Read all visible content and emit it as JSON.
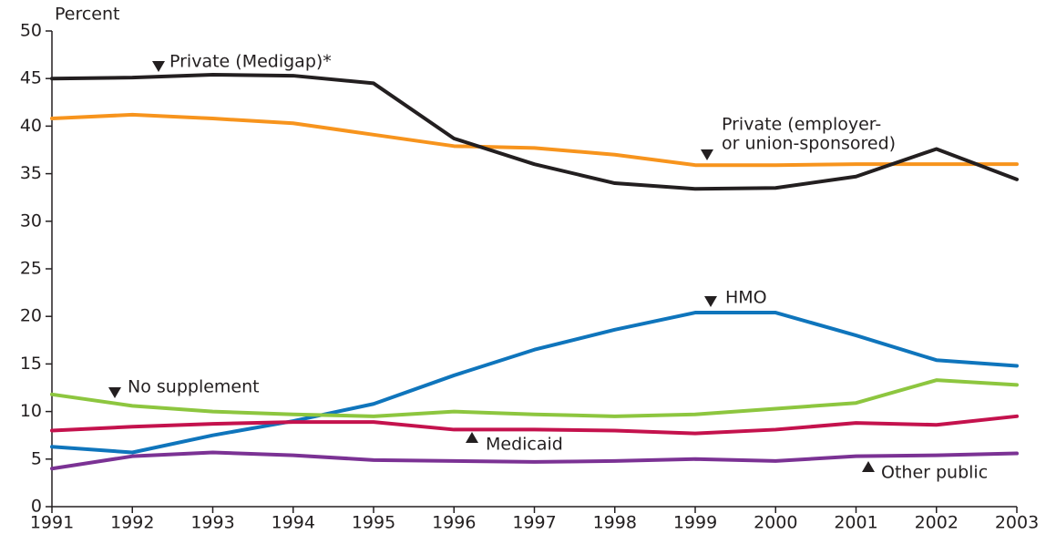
{
  "chart_data": {
    "type": "line",
    "y_label": "Percent",
    "categories": [
      "1991",
      "1992",
      "1993",
      "1994",
      "1995",
      "1996",
      "1997",
      "1998",
      "1999",
      "2000",
      "2001",
      "2002",
      "2003"
    ],
    "ylim": [
      0,
      50
    ],
    "yticks": [
      0,
      5,
      10,
      15,
      20,
      25,
      30,
      35,
      40,
      45,
      50
    ],
    "series": [
      {
        "color": "#f7941d",
        "values": [
          40.8,
          41.2,
          40.8,
          40.3,
          39.1,
          37.9,
          37.7,
          37.0,
          35.9,
          35.9,
          36.0,
          36.0,
          36.0
        ]
      },
      {
        "color": "#231f20",
        "values": [
          45.0,
          45.1,
          45.4,
          45.3,
          44.5,
          38.7,
          36.0,
          34.0,
          33.4,
          33.5,
          34.7,
          37.6,
          34.4
        ]
      },
      {
        "color": "#0f75bc",
        "values": [
          6.3,
          5.7,
          7.5,
          9.0,
          10.8,
          13.8,
          16.5,
          18.6,
          20.4,
          20.4,
          18.0,
          15.4,
          14.8
        ]
      },
      {
        "color": "#8dc63f",
        "values": [
          11.8,
          10.6,
          10.0,
          9.7,
          9.5,
          10.0,
          9.7,
          9.5,
          9.7,
          10.3,
          10.9,
          13.3,
          12.8
        ]
      },
      {
        "color": "#c4124d",
        "values": [
          8.0,
          8.4,
          8.7,
          8.9,
          8.9,
          8.1,
          8.1,
          8.0,
          7.7,
          8.1,
          8.8,
          8.6,
          9.5
        ]
      },
      {
        "color": "#7b3294",
        "values": [
          4.0,
          5.3,
          5.7,
          5.4,
          4.9,
          4.8,
          4.7,
          4.8,
          5.0,
          4.8,
          5.3,
          5.4,
          5.6
        ]
      }
    ],
    "annotations": [
      {
        "lines": [
          "Private (Medigap)*"
        ]
      },
      {
        "lines": [
          "Private (employer-",
          "or union-sponsored)"
        ]
      },
      {
        "lines": [
          "HMO"
        ]
      },
      {
        "lines": [
          "No supplement"
        ]
      },
      {
        "lines": [
          "Medicaid"
        ]
      },
      {
        "lines": [
          "Other public"
        ]
      }
    ]
  }
}
